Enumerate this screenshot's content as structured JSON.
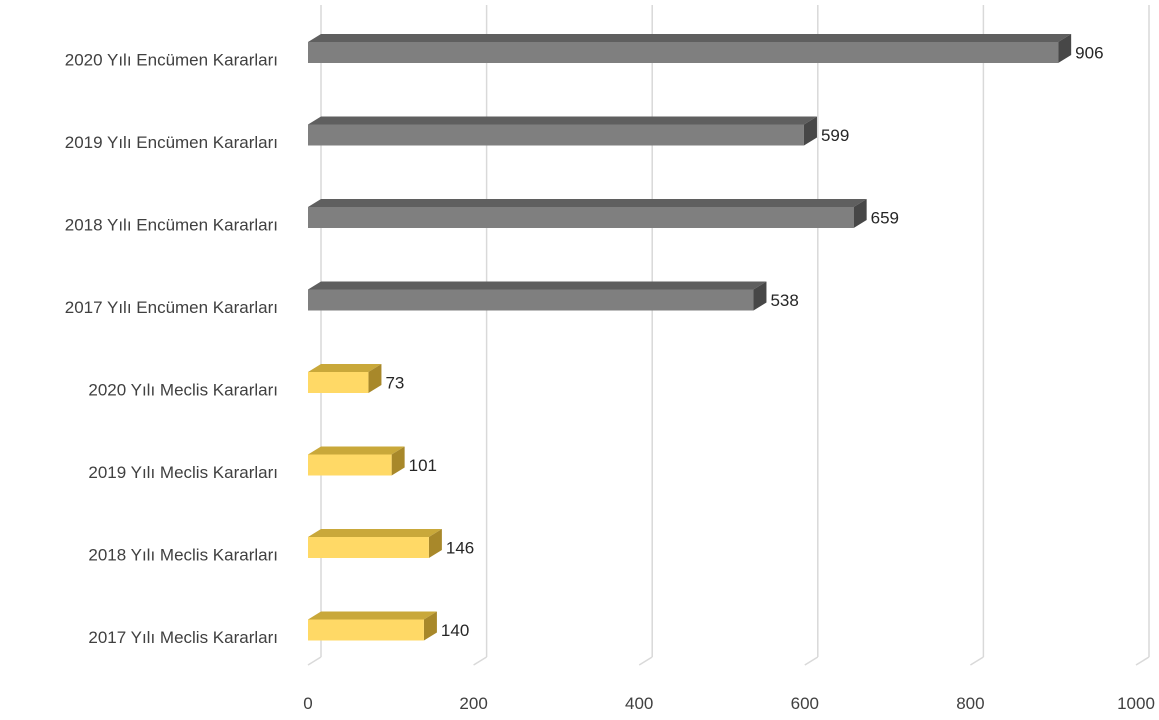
{
  "chart_data": {
    "type": "bar",
    "orientation": "horizontal",
    "title": "",
    "xlabel": "",
    "ylabel": "",
    "xlim": [
      0,
      1000
    ],
    "ticks": [
      0,
      200,
      400,
      600,
      800,
      1000
    ],
    "grid": true,
    "legend": "none",
    "categories": [
      "2020 Yılı Encümen Kararları",
      "2019 Yılı Encümen Kararları",
      "2018 Yılı Encümen Kararları",
      "2017 Yılı Encümen Kararları",
      "2020 Yılı Meclis Kararları",
      "2019 Yılı Meclis Kararları",
      "2018 Yılı Meclis Kararları",
      "2017 Yılı Meclis Kararları"
    ],
    "values": [
      906,
      599,
      659,
      538,
      73,
      101,
      146,
      140
    ],
    "colors": {
      "encumen_front": "#7f7f7f",
      "encumen_top": "#5f5f5f",
      "encumen_side": "#474747",
      "meclis_front": "#ffd966",
      "meclis_top": "#c9a83a",
      "meclis_side": "#a8882a",
      "grid": "#d9d9d9"
    },
    "group_of_category": [
      "encumen",
      "encumen",
      "encumen",
      "encumen",
      "meclis",
      "meclis",
      "meclis",
      "meclis"
    ]
  }
}
